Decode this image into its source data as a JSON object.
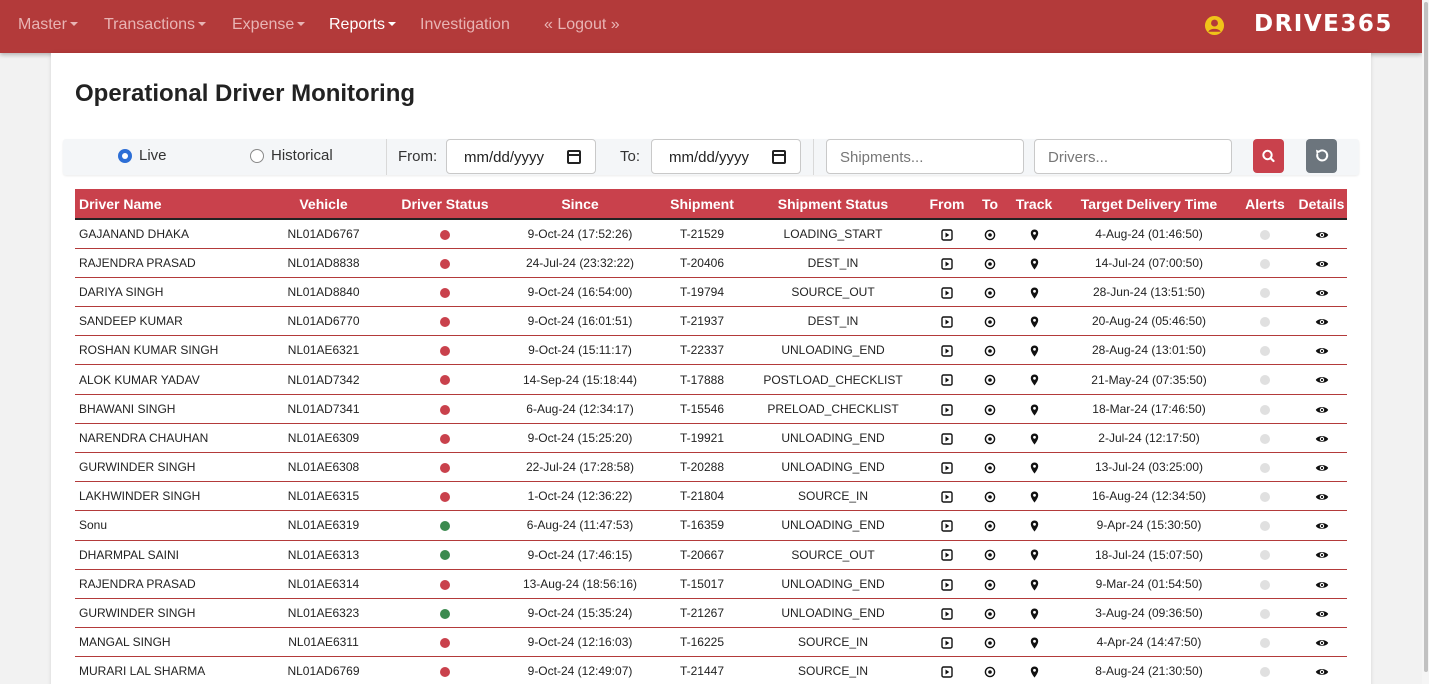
{
  "nav": {
    "items": [
      {
        "label": "Master",
        "dropdown": true
      },
      {
        "label": "Transactions",
        "dropdown": true
      },
      {
        "label": "Expense",
        "dropdown": true
      },
      {
        "label": "Reports",
        "dropdown": true,
        "active": true
      },
      {
        "label": "Investigation",
        "dropdown": false
      },
      {
        "label": "« Logout »",
        "dropdown": false
      }
    ],
    "brand": "DRIVE365",
    "user_icon": "user-circle-icon"
  },
  "page": {
    "title": "Operational Driver Monitoring"
  },
  "filters": {
    "mode_options": [
      {
        "label": "Live",
        "checked": true
      },
      {
        "label": "Historical",
        "checked": false
      }
    ],
    "from_label": "From:",
    "from_value": "mm/dd/yyyy",
    "to_label": "To:",
    "to_value": "mm/dd/yyyy",
    "shipments_placeholder": "Shipments...",
    "drivers_placeholder": "Drivers...",
    "search_icon": "search-icon",
    "reset_icon": "reset-icon"
  },
  "table": {
    "columns": [
      "Driver Name",
      "Vehicle",
      "Driver Status",
      "Since",
      "Shipment",
      "Shipment Status",
      "From",
      "To",
      "Track",
      "Target Delivery Time",
      "Alerts",
      "Details"
    ],
    "rows": [
      {
        "driver": "GAJANAND DHAKA",
        "vehicle": "NL01AD6767",
        "status": "red",
        "since": "9-Oct-24 (17:52:26)",
        "shipment": "T-21529",
        "shipment_status": "LOADING_START",
        "target": "4-Aug-24 (01:46:50)"
      },
      {
        "driver": "RAJENDRA PRASAD",
        "vehicle": "NL01AD8838",
        "status": "red",
        "since": "24-Jul-24 (23:32:22)",
        "shipment": "T-20406",
        "shipment_status": "DEST_IN",
        "target": "14-Jul-24 (07:00:50)"
      },
      {
        "driver": "DARIYA SINGH",
        "vehicle": "NL01AD8840",
        "status": "red",
        "since": "9-Oct-24 (16:54:00)",
        "shipment": "T-19794",
        "shipment_status": "SOURCE_OUT",
        "target": "28-Jun-24 (13:51:50)"
      },
      {
        "driver": "SANDEEP KUMAR",
        "vehicle": "NL01AD6770",
        "status": "red",
        "since": "9-Oct-24 (16:01:51)",
        "shipment": "T-21937",
        "shipment_status": "DEST_IN",
        "target": "20-Aug-24 (05:46:50)"
      },
      {
        "driver": "ROSHAN KUMAR SINGH",
        "vehicle": "NL01AE6321",
        "status": "red",
        "since": "9-Oct-24 (15:11:17)",
        "shipment": "T-22337",
        "shipment_status": "UNLOADING_END",
        "target": "28-Aug-24 (13:01:50)"
      },
      {
        "driver": "ALOK KUMAR YADAV",
        "vehicle": "NL01AD7342",
        "status": "red",
        "since": "14-Sep-24 (15:18:44)",
        "shipment": "T-17888",
        "shipment_status": "POSTLOAD_CHECKLIST",
        "target": "21-May-24 (07:35:50)"
      },
      {
        "driver": "BHAWANI SINGH",
        "vehicle": "NL01AD7341",
        "status": "red",
        "since": "6-Aug-24 (12:34:17)",
        "shipment": "T-15546",
        "shipment_status": "PRELOAD_CHECKLIST",
        "target": "18-Mar-24 (17:46:50)"
      },
      {
        "driver": "NARENDRA CHAUHAN",
        "vehicle": "NL01AE6309",
        "status": "red",
        "since": "9-Oct-24 (15:25:20)",
        "shipment": "T-19921",
        "shipment_status": "UNLOADING_END",
        "target": "2-Jul-24 (12:17:50)"
      },
      {
        "driver": "GURWINDER SINGH",
        "vehicle": "NL01AE6308",
        "status": "red",
        "since": "22-Jul-24 (17:28:58)",
        "shipment": "T-20288",
        "shipment_status": "UNLOADING_END",
        "target": "13-Jul-24 (03:25:00)"
      },
      {
        "driver": "LAKHWINDER SINGH",
        "vehicle": "NL01AE6315",
        "status": "red",
        "since": "1-Oct-24 (12:36:22)",
        "shipment": "T-21804",
        "shipment_status": "SOURCE_IN",
        "target": "16-Aug-24 (12:34:50)"
      },
      {
        "driver": "Sonu",
        "vehicle": "NL01AE6319",
        "status": "green",
        "since": "6-Aug-24 (11:47:53)",
        "shipment": "T-16359",
        "shipment_status": "UNLOADING_END",
        "target": "9-Apr-24 (15:30:50)"
      },
      {
        "driver": "DHARMPAL SAINI",
        "vehicle": "NL01AE6313",
        "status": "green",
        "since": "9-Oct-24 (17:46:15)",
        "shipment": "T-20667",
        "shipment_status": "SOURCE_OUT",
        "target": "18-Jul-24 (15:07:50)"
      },
      {
        "driver": "RAJENDRA PRASAD",
        "vehicle": "NL01AE6314",
        "status": "red",
        "since": "13-Aug-24 (18:56:16)",
        "shipment": "T-15017",
        "shipment_status": "UNLOADING_END",
        "target": "9-Mar-24 (01:54:50)"
      },
      {
        "driver": "GURWINDER SINGH",
        "vehicle": "NL01AE6323",
        "status": "green",
        "since": "9-Oct-24 (15:35:24)",
        "shipment": "T-21267",
        "shipment_status": "UNLOADING_END",
        "target": "3-Aug-24 (09:36:50)"
      },
      {
        "driver": "MANGAL SINGH",
        "vehicle": "NL01AE6311",
        "status": "red",
        "since": "9-Oct-24 (12:16:03)",
        "shipment": "T-16225",
        "shipment_status": "SOURCE_IN",
        "target": "4-Apr-24 (14:47:50)"
      },
      {
        "driver": "MURARI LAL SHARMA",
        "vehicle": "NL01AD6769",
        "status": "red",
        "since": "9-Oct-24 (12:49:07)",
        "shipment": "T-21447",
        "shipment_status": "SOURCE_IN",
        "target": "8-Aug-24 (21:30:50)"
      }
    ]
  },
  "colors": {
    "navbar": "#b33a3a",
    "table_header": "#c9414c",
    "status_red": "#c9414c",
    "status_green": "#3b8a4f",
    "alert_inactive": "#e0e0e0",
    "search_button": "#c9414c",
    "reset_button": "#6c757d",
    "radio_checked": "#2d6fd6",
    "user_icon": "#f0c419"
  }
}
